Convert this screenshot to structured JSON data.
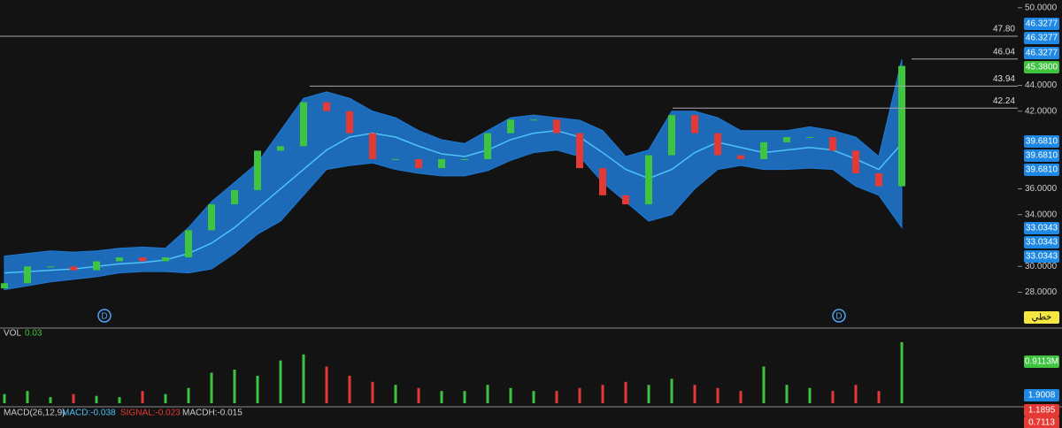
{
  "chart_data": {
    "type": "candlestick",
    "categories": [
      null,
      null,
      null,
      null,
      null,
      null,
      null,
      null,
      null,
      null,
      null,
      null,
      null,
      null,
      null,
      null,
      null,
      null,
      null,
      null,
      null,
      null,
      null,
      null,
      null,
      null,
      null,
      null,
      null,
      null,
      null,
      null,
      null,
      null,
      null,
      null,
      null,
      null,
      null,
      null
    ],
    "open": [
      28.3,
      28.7,
      30.0,
      30.0,
      29.7,
      30.4,
      30.7,
      30.4,
      30.7,
      32.8,
      34.8,
      35.9,
      38.95,
      39.3,
      42.7,
      42.0,
      40.3,
      38.3,
      38.3,
      37.6,
      38.3,
      38.3,
      40.3,
      41.35,
      41.35,
      40.3,
      37.6,
      35.5,
      34.8,
      38.6,
      41.7,
      40.3,
      38.6,
      38.3,
      39.6,
      40.0,
      40.0,
      38.95,
      37.2,
      36.2
    ],
    "close": [
      28.7,
      30.0,
      30.0,
      29.7,
      30.4,
      30.7,
      30.4,
      30.7,
      32.8,
      34.8,
      35.9,
      38.95,
      39.3,
      42.7,
      42.0,
      40.3,
      38.3,
      38.3,
      37.6,
      38.3,
      38.3,
      40.3,
      41.35,
      41.35,
      40.3,
      37.6,
      35.5,
      34.8,
      38.6,
      41.7,
      40.3,
      38.6,
      38.3,
      39.6,
      40.0,
      40.0,
      38.95,
      37.2,
      36.2,
      45.5
    ],
    "bb_upper": [
      30.8,
      31,
      31.2,
      31.1,
      31.2,
      31.4,
      31.5,
      31.4,
      33,
      35,
      36.5,
      38,
      40.5,
      43,
      43.5,
      43,
      42,
      41.5,
      40.5,
      39.8,
      39.5,
      40.5,
      41.5,
      41.7,
      41.5,
      41.3,
      40.5,
      38.5,
      39,
      42,
      42,
      41.5,
      40.5,
      40.5,
      40.5,
      40.8,
      40.5,
      40,
      38.5,
      46
    ],
    "bb_middle": [
      29.5,
      29.6,
      29.7,
      29.8,
      30,
      30.2,
      30.3,
      30.5,
      31,
      31.8,
      33,
      34.5,
      36,
      37.5,
      39,
      40,
      40.3,
      40,
      39.3,
      38.7,
      38.5,
      39,
      39.8,
      40.3,
      40.5,
      40,
      38.8,
      37.5,
      36.8,
      37.5,
      38.8,
      39.6,
      39.2,
      38.8,
      39,
      39.2,
      39,
      38.3,
      37.5,
      39.5
    ],
    "bb_lower": [
      28.2,
      28.5,
      28.8,
      29,
      29.2,
      29.5,
      29.6,
      29.6,
      29.5,
      29.8,
      31,
      32.5,
      33.5,
      35.5,
      37.5,
      37.8,
      38,
      37.5,
      37.2,
      37,
      37,
      37.4,
      38.2,
      38.8,
      39,
      38.5,
      36.5,
      35,
      33.5,
      34,
      36,
      37.5,
      37.8,
      37.5,
      37.5,
      37.6,
      37.5,
      36.2,
      35.5,
      33
    ],
    "volume": [
      0.15,
      0.2,
      0.1,
      0.15,
      0.12,
      0.1,
      0.2,
      0.15,
      0.25,
      0.5,
      0.55,
      0.45,
      0.7,
      0.8,
      0.6,
      0.45,
      0.35,
      0.3,
      0.25,
      0.2,
      0.2,
      0.3,
      0.25,
      0.2,
      0.2,
      0.25,
      0.3,
      0.35,
      0.3,
      0.4,
      0.3,
      0.25,
      0.2,
      0.6,
      0.3,
      0.25,
      0.2,
      0.3,
      0.2,
      1.0
    ],
    "volume_lim": [
      0,
      1.1
    ],
    "up_color": "#3ec43e",
    "down_color": "#e53935",
    "band_color": "#1e7ad6",
    "middle_color": "#4fc3f7",
    "ylim": [
      25.3,
      50.6
    ],
    "yticks": [
      {
        "value": 28,
        "label": "28.0000"
      },
      {
        "value": 30,
        "label": "30.0000"
      },
      {
        "value": 34,
        "label": "34.0000"
      },
      {
        "value": 36,
        "label": "36.0000"
      },
      {
        "value": 42,
        "label": "42.0000"
      },
      {
        "value": 44,
        "label": "44.0000"
      },
      {
        "value": 50,
        "label": "50.0000"
      }
    ],
    "price_lines": [
      {
        "value": 47.8,
        "label": "47.80"
      },
      {
        "value": 46.04,
        "label": "46.04"
      },
      {
        "value": 43.94,
        "label": "43.94"
      },
      {
        "value": 42.24,
        "label": "42.24"
      }
    ],
    "right_tags": [
      {
        "label": "46.3277",
        "color": "#1e88e5"
      },
      {
        "label": "46.3277",
        "color": "#1e88e5"
      },
      {
        "label": "46.3277",
        "color": "#1e88e5"
      },
      {
        "label": "45.3800",
        "color": "#3ec43e"
      },
      {
        "label": "39.6810",
        "color": "#1e88e5"
      },
      {
        "label": "39.6810",
        "color": "#1e88e5"
      },
      {
        "label": "39.6810",
        "color": "#1e88e5"
      },
      {
        "label": "33.0343",
        "color": "#1e88e5"
      },
      {
        "label": "33.0343",
        "color": "#1e88e5"
      },
      {
        "label": "33.0343",
        "color": "#1e88e5"
      },
      {
        "label": "خطي",
        "color": "#f5e642"
      },
      {
        "label": "0.9113M",
        "color": "#3ec43e"
      },
      {
        "label": "1.9008",
        "color": "#1e88e5"
      },
      {
        "label": "1.1895",
        "color": "#e53935"
      },
      {
        "label": "0.7113",
        "color": "#e53935"
      }
    ],
    "markers": [
      "D",
      "D"
    ],
    "volume_label": "VOL",
    "volume_value": "0.03",
    "macd_title": "MACD(26,12,9)",
    "macd_value": "MACD:-0.038",
    "signal_value": "SIGNAL:-0.023",
    "macdh_value": "MACDH:-0.015"
  }
}
